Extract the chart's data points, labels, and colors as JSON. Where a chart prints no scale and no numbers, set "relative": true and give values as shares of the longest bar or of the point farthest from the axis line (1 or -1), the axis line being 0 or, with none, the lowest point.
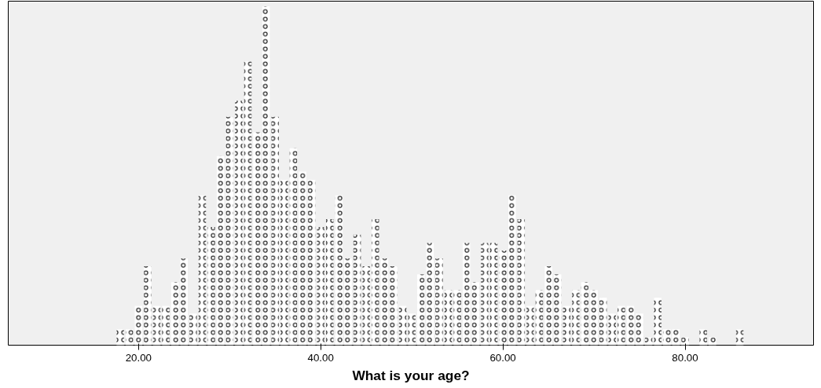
{
  "chart_data": {
    "type": "bar",
    "relative": true,
    "xlabel": "What is your age?",
    "x": [
      18,
      19,
      20,
      21,
      22,
      23,
      24,
      25,
      26,
      27,
      28,
      29,
      30,
      31,
      32,
      33,
      34,
      35,
      36,
      37,
      38,
      39,
      40,
      41,
      42,
      43,
      44,
      45,
      46,
      47,
      48,
      49,
      50,
      51,
      52,
      53,
      54,
      55,
      56,
      57,
      58,
      59,
      60,
      61,
      62,
      63,
      64,
      65,
      66,
      67,
      68,
      69,
      70,
      71,
      72,
      73,
      74,
      75,
      76,
      77,
      78,
      79,
      80,
      81,
      82,
      83,
      84,
      85,
      86
    ],
    "values": [
      0.047,
      0.047,
      0.116,
      0.233,
      0.116,
      0.116,
      0.186,
      0.256,
      0.093,
      0.442,
      0.349,
      0.558,
      0.674,
      0.721,
      0.837,
      0.628,
      1,
      0.674,
      0.488,
      0.581,
      0.512,
      0.488,
      0.349,
      0.372,
      0.442,
      0.256,
      0.326,
      0.233,
      0.372,
      0.256,
      0.233,
      0.116,
      0.093,
      0.209,
      0.302,
      0.256,
      0.163,
      0.163,
      0.302,
      0.186,
      0.302,
      0.302,
      0.279,
      0.442,
      0.372,
      0.116,
      0.163,
      0.233,
      0.209,
      0.116,
      0.163,
      0.186,
      0.163,
      0.14,
      0.093,
      0.116,
      0.116,
      0.093,
      0.023,
      0.14,
      0.047,
      0.047,
      0.023,
      0,
      0.047,
      0.023,
      0,
      0,
      0.047
    ],
    "color": "#222222",
    "xlim": [
      5.7,
      94.1
    ],
    "xticks": [
      {
        "value": 20,
        "label": "20.00"
      },
      {
        "value": 40,
        "label": "40.00"
      },
      {
        "value": 60,
        "label": "60.00"
      },
      {
        "value": 80,
        "label": "80.00"
      }
    ],
    "grid": false
  }
}
